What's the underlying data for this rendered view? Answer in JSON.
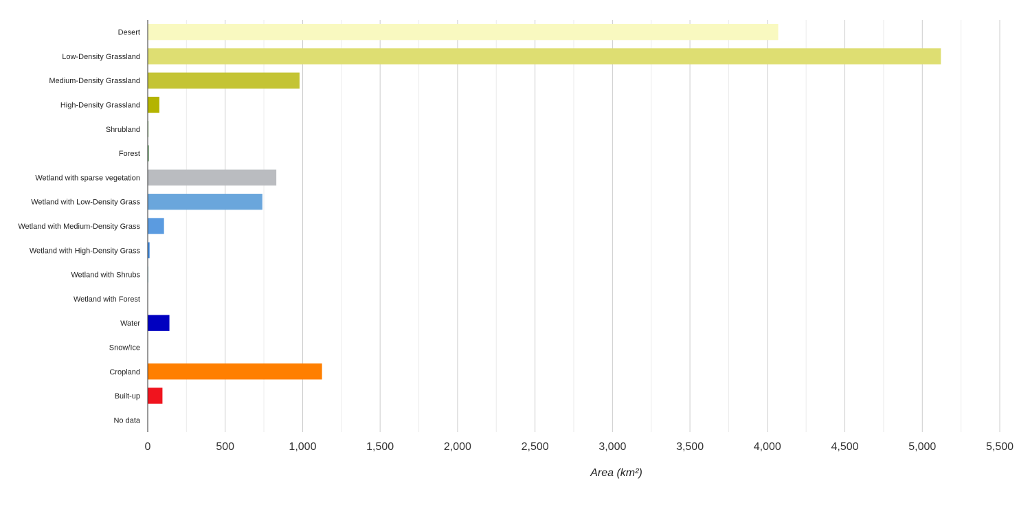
{
  "chart_data": {
    "type": "bar",
    "orientation": "horizontal",
    "title": "",
    "xlabel": "Area (km²)",
    "ylabel": "",
    "xlim": [
      0,
      5500
    ],
    "grid": true,
    "tick_labels": [
      "0",
      "500",
      "1,000",
      "1,500",
      "2,000",
      "2,500",
      "3,000",
      "3,500",
      "4,000",
      "4,500",
      "5,000",
      "5,500"
    ],
    "categories": [
      "Desert",
      "Low-Density Grassland",
      "Medium-Density Grassland",
      "High-Density Grassland",
      "Shrubland",
      "Forest",
      "Wetland with sparse vegetation",
      "Wetland with Low-Density Grass",
      "Wetland with Medium-Density Grass",
      "Wetland with High-Density Grass",
      "Wetland with Shrubs",
      "Wetland with Forest",
      "Water",
      "Snow/Ice",
      "Cropland",
      "Built-up",
      "No data"
    ],
    "values": [
      4070,
      5120,
      980,
      75,
      4,
      6,
      830,
      740,
      105,
      12,
      3,
      2,
      140,
      0,
      1125,
      95,
      1
    ],
    "colors": [
      "#f9f9c0",
      "#dede72",
      "#c4c434",
      "#b4b400",
      "#4c9a2c",
      "#1a6b1a",
      "#babcc0",
      "#6aa6dc",
      "#5b9be0",
      "#3f8ae0",
      "#2ec0d8",
      "#0a6e8a",
      "#0000c0",
      "#e6f0ff",
      "#ff7f00",
      "#f0141e",
      "#222222"
    ]
  }
}
